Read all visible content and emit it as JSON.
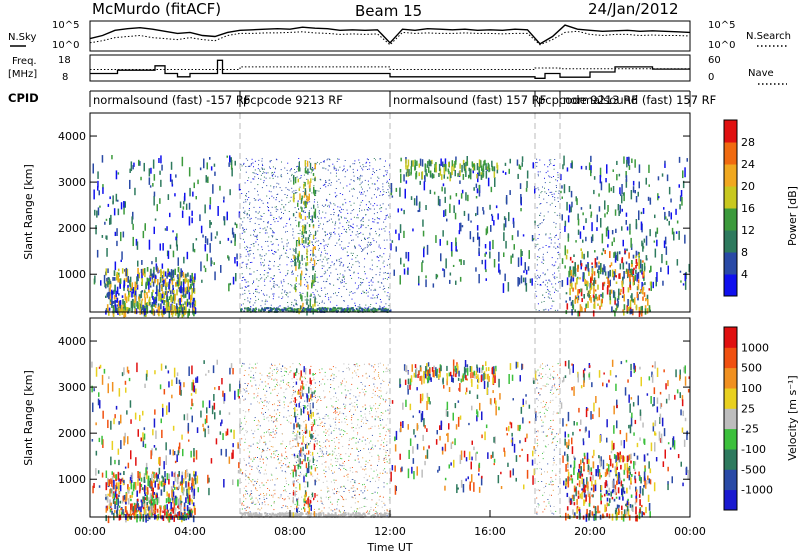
{
  "header": {
    "station": "McMurdo (fitACF)",
    "beam": "Beam 15",
    "date": "24/Jan/2012"
  },
  "colors": {
    "line": "#000000",
    "divider": "#bbbbbb",
    "power_scale": [
      "#1010ee",
      "#2a4aa6",
      "#2e7a5e",
      "#3c9a3c",
      "#c8c820",
      "#f0a820",
      "#f06a10",
      "#e01010"
    ],
    "velocity_scale": [
      "#1a1ad0",
      "#2a4aa6",
      "#2e7a5e",
      "#3cc03c",
      "#bdbdbd",
      "#e8d020",
      "#f09020",
      "#f05010",
      "#e01010"
    ]
  },
  "chart_data": [
    {
      "type": "line",
      "name": "noise-panel",
      "left_label": "N.Sky",
      "right_label": "N.Search",
      "left_ticks": [
        "10^5",
        "10^0"
      ],
      "right_ticks": [
        "10^5",
        "10^0"
      ],
      "ylim": [
        0,
        5
      ],
      "x_hours": [
        0,
        0.5,
        1,
        1.5,
        2,
        2.5,
        3,
        3.5,
        4,
        4.5,
        5,
        5.5,
        6,
        6.5,
        7,
        7.5,
        8,
        8.5,
        9,
        9.5,
        10,
        10.5,
        11,
        11.5,
        12,
        12.5,
        13,
        13.5,
        14,
        14.5,
        15,
        15.5,
        16,
        16.5,
        17,
        17.5,
        18,
        18.5,
        19,
        19.5,
        20,
        20.5,
        21,
        21.5,
        22,
        22.5,
        23,
        23.5,
        24
      ],
      "series": [
        {
          "values": [
            2.0,
            2.6,
            3.6,
            3.9,
            4.1,
            3.8,
            3.4,
            3.0,
            3.2,
            2.6,
            2.4,
            3.2,
            3.6,
            3.7,
            3.8,
            3.9,
            3.8,
            4.2,
            4.0,
            3.9,
            3.6,
            3.7,
            3.6,
            3.7,
            1.2,
            3.8,
            3.6,
            3.9,
            3.8,
            3.7,
            3.8,
            3.6,
            3.7,
            3.6,
            3.8,
            3.7,
            1.0,
            2.4,
            4.6,
            3.8,
            3.6,
            3.4,
            3.5,
            3.6,
            3.4,
            3.5,
            3.4,
            3.3,
            3.2
          ]
        },
        {
          "values": [
            1.2,
            1.6,
            2.2,
            2.4,
            2.6,
            2.2,
            2.0,
            1.8,
            2.2,
            1.8,
            1.6,
            2.6,
            3.0,
            3.0,
            3.1,
            3.1,
            3.2,
            3.3,
            3.1,
            3.0,
            2.8,
            2.9,
            2.8,
            2.9,
            0.8,
            3.2,
            3.0,
            3.1,
            3.0,
            3.0,
            3.1,
            3.0,
            3.0,
            2.9,
            3.0,
            3.0,
            0.8,
            1.8,
            3.2,
            3.4,
            2.8,
            2.6,
            2.8,
            2.8,
            2.6,
            2.7,
            2.6,
            2.6,
            2.5
          ]
        }
      ]
    },
    {
      "type": "line",
      "name": "frequency-panel",
      "left_label_top": "Freq.",
      "left_label_bottom": "[MHz]",
      "right_label": "Nave",
      "left_ticks": [
        "18",
        "8"
      ],
      "right_ticks": [
        "60",
        "0"
      ],
      "ylim": [
        8,
        18
      ],
      "nave_ylim": [
        0,
        60
      ],
      "frequency": {
        "x_hours": [
          0,
          1.1,
          1.1,
          2.6,
          2.6,
          3.0,
          3.0,
          3.5,
          3.5,
          4.0,
          4.0,
          4.5,
          4.5,
          5.1,
          5.1,
          5.3,
          5.3,
          6.0,
          6.0,
          12.0,
          12.0,
          17.8,
          17.8,
          18.2,
          18.2,
          18.8,
          18.8,
          20.0,
          20.0,
          21.0,
          21.0,
          22.5,
          22.5,
          24
        ],
        "values": [
          10.5,
          10.5,
          12.0,
          12.0,
          14.0,
          14.0,
          10.5,
          10.5,
          9.0,
          9.0,
          10.5,
          10.5,
          10.5,
          10.5,
          16.5,
          16.5,
          10.5,
          10.5,
          10.5,
          10.5,
          9.0,
          9.0,
          8.3,
          8.3,
          10.5,
          10.5,
          8.8,
          8.8,
          11.2,
          11.2,
          13.5,
          13.5,
          12.5,
          12.5
        ]
      },
      "nave": {
        "x_hours": [
          0,
          6,
          6,
          12,
          12,
          17.8,
          17.8,
          18.8,
          18.8,
          24
        ],
        "values": [
          26,
          26,
          33,
          33,
          26,
          26,
          30,
          30,
          28,
          28
        ]
      }
    },
    {
      "type": "table",
      "name": "cpid-bar",
      "label": "CPID",
      "segments": [
        {
          "start_hour": 0,
          "end_hour": 6,
          "text": "normalsound (fast) -157 RF"
        },
        {
          "start_hour": 6,
          "end_hour": 12,
          "text": "pcpcode 9213 RF"
        },
        {
          "start_hour": 12,
          "end_hour": 17.8,
          "text": "normalsound (fast) 157 RF"
        },
        {
          "start_hour": 17.8,
          "end_hour": 18.8,
          "text": "pcpcode 9213 RF"
        },
        {
          "start_hour": 18.8,
          "end_hour": 24,
          "text": "normalsound (fast) 157 RF"
        }
      ]
    },
    {
      "type": "heatmap",
      "name": "power-panel",
      "ylabel": "Slant Range [km]",
      "ylim": [
        180,
        4500
      ],
      "yticks": [
        1000,
        2000,
        3000,
        4000
      ],
      "xlim": [
        0,
        24
      ],
      "colorbar_label": "Power [dB]",
      "colorbar_ticks": [
        "28",
        "24",
        "20",
        "16",
        "12",
        "8",
        "4"
      ],
      "colorbar_range": [
        0,
        32
      ],
      "intervals_hours": [
        6,
        12,
        17.8,
        18.8
      ]
    },
    {
      "type": "heatmap",
      "name": "velocity-panel",
      "ylabel": "Slant Range [km]",
      "ylim": [
        180,
        4500
      ],
      "yticks": [
        1000,
        2000,
        3000,
        4000
      ],
      "xlim": [
        0,
        24
      ],
      "colorbar_label": "Velocity [m s⁻¹]",
      "colorbar_ticks": [
        "1000",
        "500",
        "100",
        "25",
        "-25",
        "-100",
        "-500",
        "-1000"
      ],
      "xlabel": "Time UT",
      "xticks": [
        "00:00",
        "04:00",
        "08:00",
        "12:00",
        "16:00",
        "20:00",
        "00:00"
      ],
      "intervals_hours": [
        6,
        12,
        17.8,
        18.8
      ]
    }
  ]
}
